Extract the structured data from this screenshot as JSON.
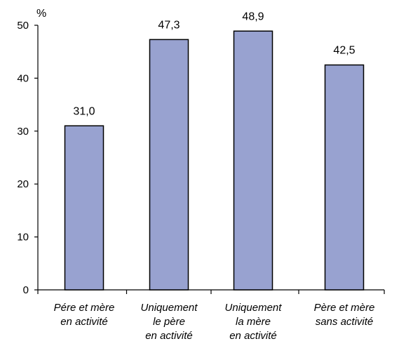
{
  "chart_data": {
    "type": "bar",
    "ylabel": "%",
    "ylim": [
      0,
      50
    ],
    "yticks": [
      "0",
      "10",
      "20",
      "30",
      "40",
      "50"
    ],
    "categories": [
      [
        "Pére et mère",
        "en activité"
      ],
      [
        "Uniquement",
        "le père",
        "en activité"
      ],
      [
        "Uniquement",
        "la mère",
        "en activité"
      ],
      [
        "Père et mère",
        "sans activité"
      ]
    ],
    "values": [
      31.0,
      47.3,
      48.9,
      42.5
    ],
    "value_labels": [
      "31,0",
      "47,3",
      "48,9",
      "42,5"
    ],
    "bar_color": "#98a2d0",
    "bar_border_color": "#000000",
    "grid": false
  }
}
